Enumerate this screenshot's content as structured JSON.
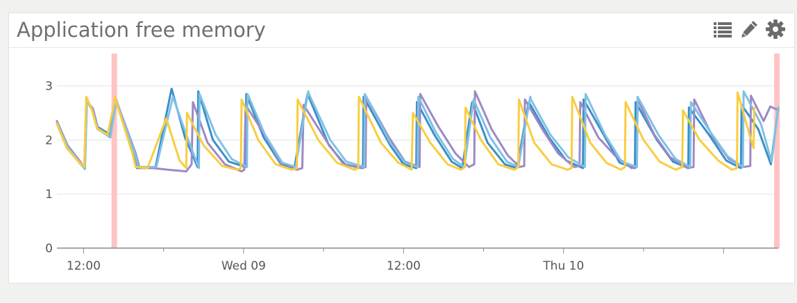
{
  "panel": {
    "title": "Application free memory",
    "icons": [
      "list-icon",
      "pencil-icon",
      "gear-icon"
    ]
  },
  "colors": {
    "grid": "#e3e3e3",
    "axis": "#555555",
    "marker": "#ffc3c3",
    "series": [
      "#3a8fc9",
      "#9e88c5",
      "#7fc1e4",
      "#f8cd3f"
    ]
  },
  "chart_data": {
    "type": "line",
    "title": "Application free memory",
    "xlabel": "",
    "ylabel": "",
    "ylim": [
      0,
      3.6
    ],
    "xlim": [
      "Tue 08 ~10:00",
      "Thu 10 ~17:00"
    ],
    "y_ticks": [
      0,
      1,
      2,
      3
    ],
    "x_ticks": [
      "12:00",
      "Wed 09",
      "12:00",
      "Thu 10"
    ],
    "grid": true,
    "legend": "none",
    "markers_x_hours": [
      4.3,
      54.0
    ],
    "series": [
      {
        "x_hours": [
          0.0,
          0.75,
          1.55,
          2.05,
          2.2,
          2.6,
          3.0,
          4.0,
          4.4,
          4.45,
          5.8,
          6.0,
          7.4,
          8.6,
          9.6,
          10.55,
          10.6,
          11.7,
          12.9,
          14.15,
          14.2,
          15.5,
          16.8,
          17.8,
          18.75,
          18.8,
          20.4,
          21.6,
          22.95,
          23.0,
          25.0,
          26.0,
          26.95,
          27.0,
          28.3,
          29.6,
          30.4,
          31.1,
          31.15,
          32.3,
          33.6,
          34.5,
          35.35,
          35.4,
          36.9,
          38.2,
          39.45,
          39.5,
          41.0,
          42.2,
          43.35,
          43.4,
          45.0,
          46.2,
          47.35,
          47.4,
          48.9,
          50.2,
          51.3,
          51.35,
          52.6,
          53.55,
          54.1
        ],
        "y": [
          2.3,
          1.85,
          1.62,
          1.48,
          2.75,
          2.6,
          2.25,
          2.1,
          2.75,
          2.72,
          1.78,
          1.48,
          1.5,
          2.95,
          2.05,
          1.5,
          2.9,
          2.0,
          1.6,
          1.5,
          2.85,
          2.05,
          1.55,
          1.48,
          2.8,
          2.85,
          1.9,
          1.55,
          1.48,
          2.8,
          1.9,
          1.55,
          1.48,
          2.7,
          2.1,
          1.6,
          1.48,
          2.65,
          2.7,
          1.95,
          1.55,
          1.48,
          2.65,
          2.7,
          2.05,
          1.62,
          1.48,
          2.75,
          2.1,
          1.58,
          1.48,
          2.7,
          2.0,
          1.6,
          1.48,
          2.6,
          2.1,
          1.62,
          1.48,
          2.65,
          2.2,
          1.55,
          2.6
        ]
      },
      {
        "x_hours": [
          0.0,
          0.8,
          1.65,
          2.1,
          2.25,
          2.7,
          3.1,
          4.0,
          4.45,
          4.5,
          5.9,
          6.2,
          7.2,
          8.35,
          9.7,
          10.1,
          10.2,
          11.3,
          12.6,
          13.85,
          14.05,
          14.15,
          15.7,
          16.9,
          18.0,
          18.4,
          18.5,
          20.3,
          21.5,
          22.8,
          23.15,
          23.2,
          24.9,
          26.1,
          27.2,
          27.25,
          28.6,
          29.9,
          30.9,
          31.3,
          31.35,
          32.6,
          33.8,
          34.7,
          35.05,
          35.1,
          36.4,
          37.6,
          38.8,
          39.2,
          39.25,
          40.6,
          41.9,
          43.1,
          43.5,
          43.55,
          44.8,
          46.0,
          47.3,
          47.75,
          47.8,
          49.2,
          50.4,
          51.5,
          52.0,
          52.05,
          53.0,
          53.5,
          54.1
        ],
        "y": [
          2.35,
          1.9,
          1.63,
          1.48,
          2.72,
          2.58,
          2.2,
          2.05,
          2.75,
          2.7,
          1.76,
          1.48,
          1.48,
          1.45,
          1.42,
          1.55,
          2.7,
          1.95,
          1.55,
          1.42,
          1.45,
          2.65,
          2.05,
          1.52,
          1.45,
          1.48,
          2.65,
          1.95,
          1.55,
          1.48,
          1.5,
          2.8,
          2.05,
          1.6,
          1.5,
          2.85,
          2.25,
          1.75,
          1.5,
          1.55,
          2.9,
          2.2,
          1.72,
          1.5,
          1.52,
          2.75,
          2.2,
          1.75,
          1.5,
          1.52,
          2.7,
          2.05,
          1.7,
          1.48,
          1.5,
          2.75,
          2.1,
          1.68,
          1.48,
          1.5,
          2.75,
          2.05,
          1.65,
          1.5,
          1.52,
          2.82,
          2.35,
          2.62,
          2.55
        ]
      },
      {
        "x_hours": [
          0.0,
          0.8,
          1.6,
          2.1,
          2.25,
          2.65,
          3.05,
          4.0,
          4.45,
          4.5,
          5.85,
          6.1,
          7.45,
          8.7,
          9.7,
          10.65,
          10.7,
          11.9,
          13.1,
          14.25,
          14.3,
          15.6,
          16.9,
          17.9,
          18.85,
          18.9,
          20.5,
          21.7,
          23.05,
          23.1,
          25.0,
          26.1,
          27.05,
          27.1,
          28.4,
          29.7,
          30.55,
          31.25,
          31.3,
          32.5,
          33.75,
          34.6,
          35.5,
          35.55,
          37.0,
          38.35,
          39.6,
          39.65,
          41.1,
          42.35,
          43.5,
          43.55,
          45.1,
          46.4,
          47.5,
          47.55,
          49.0,
          50.3,
          51.45,
          51.5,
          52.8,
          53.6,
          54.1
        ],
        "y": [
          2.32,
          1.87,
          1.62,
          1.46,
          2.72,
          2.55,
          2.2,
          2.06,
          2.72,
          2.68,
          1.75,
          1.5,
          1.5,
          2.8,
          2.1,
          1.48,
          2.85,
          2.1,
          1.65,
          1.5,
          2.85,
          2.1,
          1.58,
          1.5,
          2.9,
          2.85,
          2.0,
          1.6,
          1.5,
          2.85,
          1.95,
          1.58,
          1.5,
          2.8,
          2.15,
          1.65,
          1.5,
          2.75,
          2.72,
          2.05,
          1.6,
          1.5,
          2.8,
          2.75,
          2.1,
          1.68,
          1.5,
          2.85,
          2.1,
          1.6,
          1.5,
          2.8,
          2.1,
          1.65,
          1.5,
          2.7,
          2.15,
          1.7,
          1.5,
          2.9,
          2.3,
          1.6,
          2.6
        ]
      },
      {
        "x_hours": [
          0.0,
          0.75,
          1.55,
          2.05,
          2.2,
          2.6,
          3.0,
          3.8,
          4.4,
          4.45,
          5.7,
          5.9,
          6.8,
          8.2,
          9.2,
          9.7,
          9.75,
          11.0,
          12.4,
          13.5,
          13.8,
          13.85,
          15.1,
          16.4,
          17.6,
          18.0,
          18.05,
          19.6,
          21.0,
          22.3,
          22.6,
          22.65,
          24.3,
          25.6,
          26.6,
          26.7,
          28.0,
          29.3,
          30.3,
          30.6,
          30.65,
          31.8,
          33.1,
          34.3,
          34.6,
          34.65,
          35.8,
          37.1,
          38.3,
          38.6,
          38.65,
          40.0,
          41.2,
          42.3,
          42.6,
          42.65,
          44.0,
          45.2,
          46.4,
          46.9,
          46.95,
          48.2,
          49.6,
          50.6,
          51.0,
          51.05,
          51.6,
          52.0,
          52.25,
          52.3
        ],
        "y": [
          2.3,
          1.85,
          1.62,
          1.5,
          2.8,
          2.58,
          2.22,
          2.1,
          2.8,
          2.7,
          1.72,
          1.5,
          1.48,
          2.4,
          1.62,
          1.48,
          2.5,
          1.9,
          1.52,
          1.45,
          1.48,
          2.75,
          2.0,
          1.55,
          1.45,
          1.48,
          2.75,
          2.0,
          1.58,
          1.45,
          1.48,
          2.8,
          1.95,
          1.58,
          1.45,
          2.5,
          1.95,
          1.55,
          1.45,
          1.5,
          2.6,
          2.0,
          1.55,
          1.45,
          1.5,
          2.75,
          1.95,
          1.55,
          1.45,
          1.48,
          2.8,
          1.95,
          1.58,
          1.45,
          1.5,
          2.7,
          2.0,
          1.6,
          1.45,
          1.5,
          2.55,
          2.0,
          1.62,
          1.45,
          1.48,
          2.88,
          2.4,
          2.05,
          1.85,
          2.6
        ]
      }
    ]
  }
}
